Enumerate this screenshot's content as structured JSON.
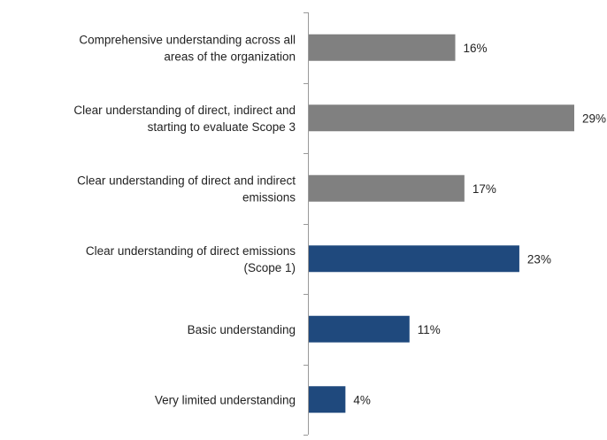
{
  "chart_data": {
    "type": "bar",
    "orientation": "horizontal",
    "categories": [
      [
        "Comprehensive understanding across all",
        "areas of the organization"
      ],
      [
        "Clear understanding of direct, indirect and",
        "starting to evaluate Scope 3"
      ],
      [
        "Clear understanding of direct and indirect",
        "emissions"
      ],
      [
        "Clear understanding of direct emissions",
        "(Scope 1)"
      ],
      [
        "Basic understanding"
      ],
      [
        "Very limited understanding"
      ]
    ],
    "values": [
      16,
      29,
      17,
      23,
      11,
      4
    ],
    "value_labels": [
      "16%",
      "29%",
      "17%",
      "23%",
      "11%",
      "4%"
    ],
    "bar_colors": [
      "#808080",
      "#808080",
      "#808080",
      "#1f497d",
      "#1f497d",
      "#1f497d"
    ],
    "xlim": [
      0,
      29
    ],
    "grid": false,
    "legend": "none",
    "title": "",
    "xlabel": "",
    "ylabel": ""
  }
}
